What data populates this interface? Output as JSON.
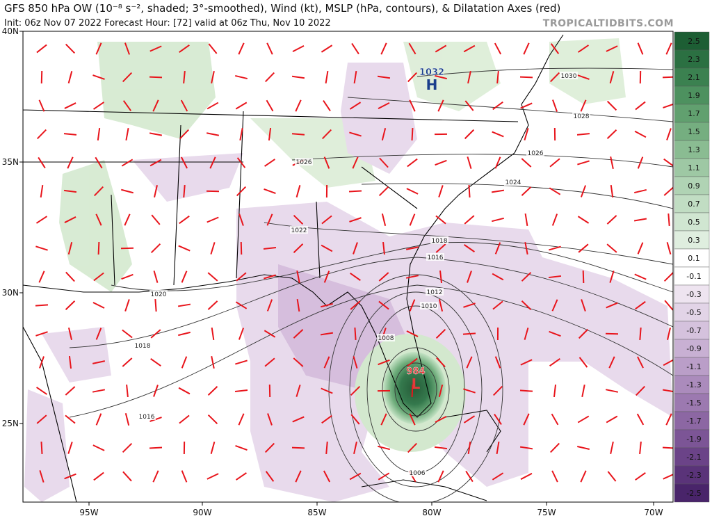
{
  "header": {
    "title": "GFS 850 hPa OW (10⁻⁸ s⁻², shaded; 3°-smoothed), Wind (kt), MSLP (hPa, contours), & Dilatation Axes (red)",
    "subtitle": "Init: 06z Nov 07 2022   Forecast Hour: [72]   valid at 06z Thu, Nov 10 2022",
    "watermark": "TROPICALTIDBITS.COM"
  },
  "map": {
    "lon_labels": [
      "95W",
      "90W",
      "85W",
      "80W",
      "75W",
      "70W"
    ],
    "lat_labels": [
      "40N",
      "35N",
      "30N",
      "25N"
    ],
    "contour_labels": [
      "1030",
      "1028",
      "1026",
      "1024",
      "1026",
      "1022",
      "1020",
      "1018",
      "1018",
      "1016",
      "1016",
      "1012",
      "1010",
      "1008",
      "1006"
    ],
    "centers": [
      {
        "label": "H",
        "pressure": "1032"
      },
      {
        "label": "L",
        "pressure": "984"
      }
    ]
  },
  "colorbar": {
    "labels": [
      "2.5",
      "2.3",
      "2.1",
      "1.9",
      "1.7",
      "1.5",
      "1.3",
      "1.1",
      "0.9",
      "0.7",
      "0.5",
      "0.3",
      "0.1",
      "-0.1",
      "-0.3",
      "-0.5",
      "-0.7",
      "-0.9",
      "-1.1",
      "-1.3",
      "-1.5",
      "-1.7",
      "-1.9",
      "-2.1",
      "-2.3",
      "-2.5"
    ]
  }
}
